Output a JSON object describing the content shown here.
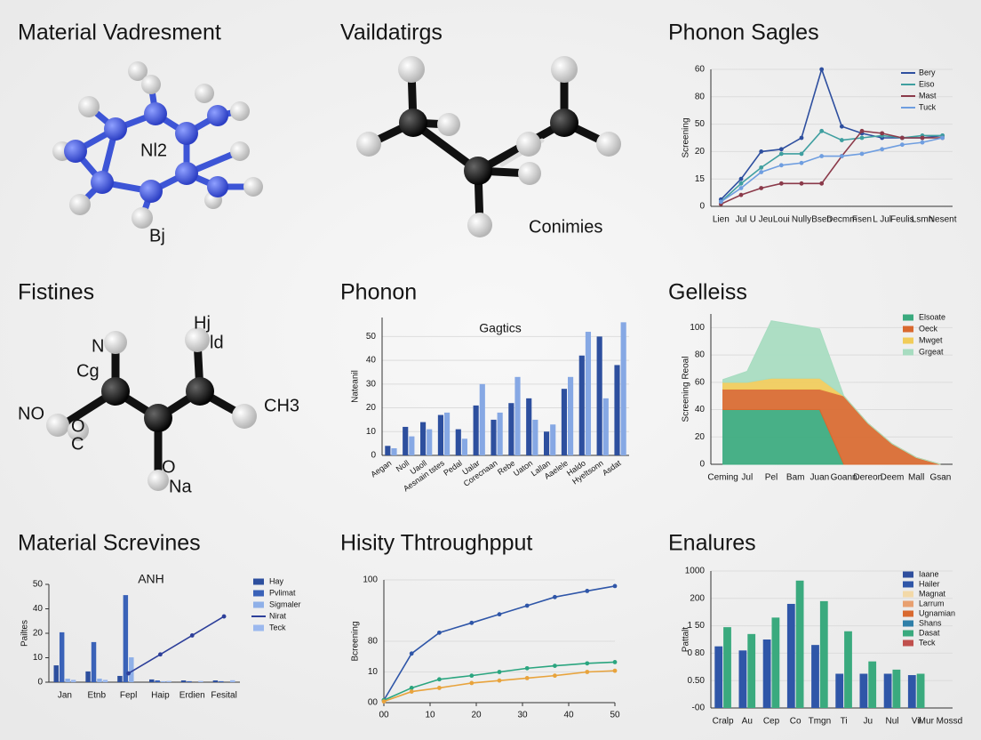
{
  "molecules": [
    {
      "title": "Material Vadresment",
      "labels": [
        "Nl2",
        "Bj"
      ]
    },
    {
      "title": "Vaildatirgs",
      "labels": [
        "Conimies"
      ]
    },
    {
      "title": "Fistines",
      "labels": [
        "N",
        "Cg",
        "Hj",
        "ld",
        "NO",
        "O",
        "C",
        "CH3",
        "O",
        "Na"
      ]
    }
  ],
  "chart_data": [
    {
      "type": "line",
      "title": "Phonon Sagles",
      "y_label": "Screening",
      "categories": [
        "Lien",
        "Jul",
        "U Jeu",
        "Loui",
        "Nully",
        "Bsen",
        "Decmm",
        "Fsen",
        "L Jul",
        "Feulis",
        "Lsmn",
        "Nesent"
      ],
      "series": [
        {
          "name": "Bery",
          "color": "#2e4f9f",
          "values": [
            3,
            12,
            24,
            25,
            30,
            60,
            35,
            32,
            30,
            30,
            30,
            31
          ]
        },
        {
          "name": "Eiso",
          "color": "#3f9fa0",
          "values": [
            2,
            10,
            17,
            23,
            23,
            33,
            29,
            30,
            31,
            30,
            31,
            31
          ]
        },
        {
          "name": "Mast",
          "color": "#8b3a4a",
          "values": [
            1,
            5,
            8,
            10,
            10,
            10,
            22,
            33,
            32,
            30,
            30,
            30
          ]
        },
        {
          "name": "Tuck",
          "color": "#6f9ee0",
          "values": [
            2,
            8,
            15,
            18,
            19,
            22,
            22,
            23,
            25,
            27,
            28,
            30
          ]
        }
      ],
      "ylim": [
        0,
        60
      ],
      "yticks": [
        0,
        {
          "value": 12,
          "label": "15"
        },
        {
          "value": 24,
          "label": "20"
        },
        {
          "value": 36,
          "label": "50"
        },
        {
          "value": 48,
          "label": "80"
        },
        60
      ],
      "grid": true,
      "legend": "upper right"
    },
    {
      "type": "bar",
      "title": "Phonon",
      "subtitle": "Gagtics",
      "y_label": "Nateanil",
      "categories": [
        "Aegan",
        "Noll",
        "Uaoll",
        "Aesnain tstes",
        "Pedal",
        "Ualar",
        "Corecnaan",
        "Rebe",
        "Uaton",
        "Lallan",
        "Aaelele",
        "Haldo",
        "Hyeltsonn",
        "Asdat"
      ],
      "series": [
        {
          "color": "#2d4f9e",
          "values": [
            4,
            12,
            14,
            17,
            11,
            21,
            15,
            22,
            24,
            10,
            28,
            42,
            50,
            38
          ]
        },
        {
          "color": "#86a8e4",
          "values": [
            3,
            8,
            11,
            18,
            7,
            30,
            18,
            33,
            15,
            13,
            33,
            52,
            24,
            56
          ]
        }
      ],
      "ylim": [
        0,
        58
      ],
      "yticks": [
        0,
        10,
        20,
        30,
        40,
        50
      ],
      "grid": true
    },
    {
      "type": "area",
      "title": "Gelleiss",
      "y_label": "Screening Reoal",
      "categories": [
        "Ceming",
        "Jul",
        "Pel",
        "Bam",
        "Juan",
        "Goann",
        "Dereon",
        "Deem",
        "Mall",
        "Gsan"
      ],
      "series": [
        {
          "name": "Elsoate",
          "color": "#3aaa7e",
          "values": [
            40,
            40,
            40,
            40,
            40,
            0,
            0,
            0,
            0,
            0
          ]
        },
        {
          "name": "Oeck",
          "color": "#d9692f",
          "values": [
            15,
            15,
            15,
            15,
            15,
            50,
            30,
            15,
            5,
            0
          ]
        },
        {
          "name": "Mwget",
          "color": "#f1cc5a",
          "values": [
            5,
            5,
            8,
            8,
            8,
            0,
            0,
            0,
            0,
            0
          ]
        },
        {
          "name": "Grgeat",
          "color": "#a7dcc0",
          "values": [
            2,
            8,
            42,
            39,
            36,
            0,
            0,
            0,
            0,
            0
          ]
        }
      ],
      "ylim": [
        0,
        110
      ],
      "yticks": [
        0,
        20,
        40,
        60,
        80,
        100
      ],
      "grid": true,
      "legend": "upper right"
    },
    {
      "type": "bar",
      "title": "Material Screvines",
      "subtitle": "ANH",
      "y_label": "Pailtes",
      "categories": [
        "Jan",
        "Etnb",
        "Fepl",
        "Haip",
        "Erdien",
        "Fesital"
      ],
      "series": [
        {
          "name": "Hay",
          "color": "#2d4f9e",
          "values": [
            8.6,
            5.5,
            3.2,
            1.4,
            0.9,
            0.9
          ]
        },
        {
          "name": "Pvlimat",
          "color": "#3a62b8",
          "values": [
            25.5,
            20.5,
            44.5,
            0.9,
            0.5,
            0.5
          ]
        },
        {
          "name": "Sigmaler",
          "color": "#8fb0e8",
          "values": [
            1.8,
            1.8,
            12.7,
            0.5,
            null,
            null
          ]
        },
        {
          "name": "Nirat",
          "type": "line",
          "color": "#2d3f9a",
          "values": [
            null,
            null,
            4.5,
            14.2,
            23.9,
            33.6
          ]
        },
        {
          "name": "Teck",
          "color": "#9bb8ee",
          "values": [
            1.2,
            1.2,
            null,
            0.6,
            0.6,
            1
          ]
        }
      ],
      "ylim": [
        0,
        50
      ],
      "yticks": [
        0,
        {
          "value": 12.5,
          "label": "10"
        },
        {
          "value": 25,
          "label": "20"
        },
        {
          "value": 37.5,
          "label": "40"
        },
        50
      ],
      "grid": false,
      "legend": "right"
    },
    {
      "type": "line",
      "title": "Hisity Thtroughpput",
      "y_label": "Bcreening",
      "x": [
        0,
        6,
        12,
        19,
        25,
        31,
        37,
        44,
        50
      ],
      "xlim": [
        0,
        50
      ],
      "xticks": [
        {
          "value": 0,
          "label": "00"
        },
        10,
        20,
        30,
        40,
        50
      ],
      "series": [
        {
          "color": "#2f56a8",
          "values": [
            2,
            40,
            57,
            65,
            72,
            79,
            86,
            91,
            95
          ]
        },
        {
          "color": "#2aa57f",
          "values": [
            2,
            12,
            19,
            22,
            25,
            28,
            30,
            32,
            33
          ]
        },
        {
          "color": "#e8a33c",
          "values": [
            1,
            9,
            12,
            16,
            18,
            20,
            22,
            25,
            26
          ]
        }
      ],
      "ylim": [
        0,
        100
      ],
      "yticks": [
        {
          "value": 0,
          "label": "00"
        },
        {
          "value": 25,
          "label": "10"
        },
        {
          "value": 50,
          "label": "80"
        },
        100
      ],
      "grid": true
    },
    {
      "type": "bar",
      "title": "Enalures",
      "y_label": "Pattalt",
      "categories": [
        "Cralp",
        "Au",
        "Cep",
        "Co",
        "Tmgn",
        "Ti",
        "Ju",
        "Nul",
        "Vil",
        "Mur Mossd"
      ],
      "series": [
        {
          "name": "Iaane",
          "color": "#2f4f9e",
          "values": [
            null,
            null,
            null,
            null,
            null,
            null,
            null,
            null,
            null,
            null
          ]
        },
        {
          "name": "Hailer",
          "color": "#2f56a8",
          "values": [
            2.25,
            2.1,
            2.5,
            3.8,
            2.3,
            1.25,
            1.25,
            1.25,
            1.2,
            null
          ]
        },
        {
          "name": "Magnat",
          "color": "#f3d9a8",
          "values": [
            null,
            null,
            null,
            null,
            null,
            null,
            null,
            null,
            null,
            null
          ]
        },
        {
          "name": "Larrum",
          "color": "#e8a070",
          "values": [
            null,
            null,
            null,
            null,
            null,
            null,
            null,
            null,
            null,
            null
          ]
        },
        {
          "name": "Ugnamian",
          "color": "#d9692f",
          "values": [
            null,
            null,
            null,
            null,
            null,
            null,
            null,
            null,
            null,
            null
          ]
        },
        {
          "name": "Shans",
          "color": "#2f7fa8",
          "values": [
            null,
            null,
            null,
            null,
            null,
            null,
            null,
            null,
            null,
            null
          ]
        },
        {
          "name": "Dasat",
          "color": "#3aaa7e",
          "values": [
            2.95,
            2.7,
            3.3,
            4.65,
            3.9,
            2.8,
            1.7,
            1.4,
            1.25,
            null
          ]
        },
        {
          "name": "Teck",
          "color": "#c0504d",
          "values": [
            null,
            null,
            null,
            null,
            null,
            null,
            null,
            null,
            null,
            null
          ]
        }
      ],
      "ylim": [
        0,
        5
      ],
      "yticks": [
        {
          "value": 0,
          "label": "-00"
        },
        {
          "value": 1,
          "label": "0.50"
        },
        {
          "value": 2,
          "label": "0 80"
        },
        {
          "value": 3,
          "label": "1 50"
        },
        {
          "value": 4,
          "label": "200"
        },
        {
          "value": 5,
          "label": "1000"
        }
      ],
      "grid": true,
      "legend": "upper right"
    }
  ]
}
